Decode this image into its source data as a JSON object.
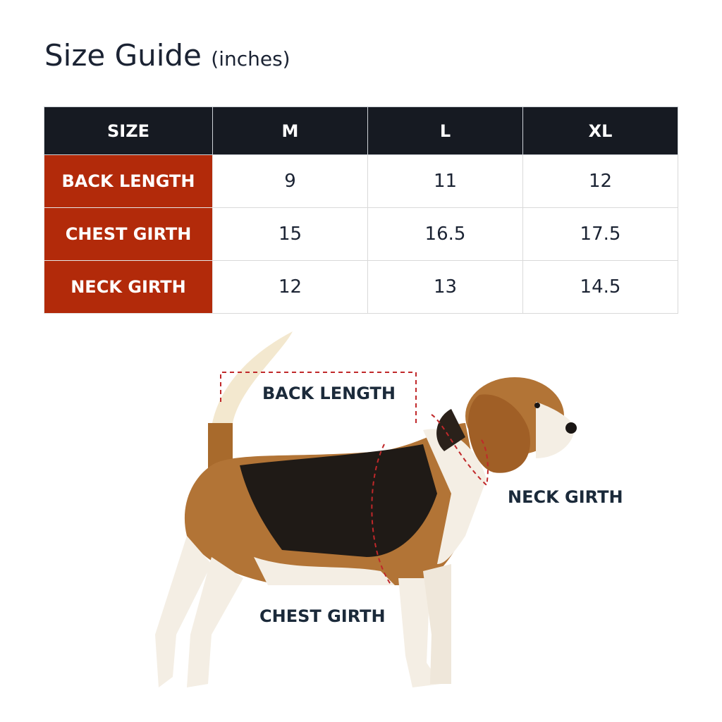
{
  "title": "Size Guide",
  "unit": "(inches)",
  "table": {
    "headers": [
      "SIZE",
      "M",
      "L",
      "XL"
    ],
    "rows": [
      {
        "label": "BACK LENGTH",
        "values": [
          "9",
          "11",
          "12"
        ]
      },
      {
        "label": "CHEST GIRTH",
        "values": [
          "15",
          "16.5",
          "17.5"
        ]
      },
      {
        "label": "NECK GIRTH",
        "values": [
          "12",
          "13",
          "14.5"
        ]
      }
    ]
  },
  "diagram": {
    "back_length": "BACK LENGTH",
    "neck_girth": "NECK GIRTH",
    "chest_girth": "CHEST GIRTH"
  },
  "colors": {
    "header": "#161a22",
    "row_header": "#b22a0a",
    "guide_line": "#c0282a"
  }
}
